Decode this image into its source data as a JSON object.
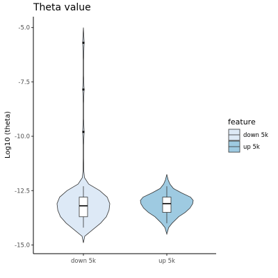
{
  "chart_data": {
    "type": "violin",
    "title": "Theta value",
    "xlabel": "",
    "ylabel": "Log10 (theta)",
    "ylim": [
      -15.4,
      -4.5
    ],
    "yticks": [
      -5.0,
      -7.5,
      -10.0,
      -12.5,
      -15.0
    ],
    "ytick_labels": [
      "-5.0",
      "-7.5",
      "-10.0",
      "-12.5",
      "-15.0"
    ],
    "categories": [
      "down 5k",
      "up 5k"
    ],
    "grid": false,
    "legend": {
      "title": "feature",
      "position": "right",
      "entries": [
        "down 5k",
        "up 5k"
      ]
    },
    "colors": {
      "down 5k": "#dde9f6",
      "up 5k": "#9ecae1",
      "outline": "#333333"
    },
    "series": [
      {
        "name": "down 5k",
        "box": {
          "q1": -13.7,
          "median": -13.2,
          "q3": -12.8,
          "whisker_low": -14.2,
          "whisker_high": -12.3
        },
        "outliers": [
          -5.7,
          -7.85,
          -9.8
        ],
        "density": [
          [
            -14.9,
            0.0
          ],
          [
            -14.6,
            0.05
          ],
          [
            -14.3,
            0.35
          ],
          [
            -14.0,
            0.65
          ],
          [
            -13.7,
            0.87
          ],
          [
            -13.4,
            0.97
          ],
          [
            -13.1,
            1.0
          ],
          [
            -12.8,
            0.9
          ],
          [
            -12.5,
            0.62
          ],
          [
            -12.2,
            0.2
          ],
          [
            -11.9,
            0.04
          ],
          [
            -11.6,
            0.015
          ],
          [
            -11.0,
            0.008
          ],
          [
            -10.4,
            0.008
          ],
          [
            -10.0,
            0.02
          ],
          [
            -9.8,
            0.03
          ],
          [
            -9.6,
            0.02
          ],
          [
            -9.2,
            0.008
          ],
          [
            -8.5,
            0.008
          ],
          [
            -8.0,
            0.02
          ],
          [
            -7.85,
            0.03
          ],
          [
            -7.7,
            0.02
          ],
          [
            -7.2,
            0.008
          ],
          [
            -6.5,
            0.008
          ],
          [
            -5.9,
            0.02
          ],
          [
            -5.7,
            0.03
          ],
          [
            -5.5,
            0.02
          ],
          [
            -5.0,
            0.0
          ]
        ]
      },
      {
        "name": "up 5k",
        "box": {
          "q1": -13.5,
          "median": -13.1,
          "q3": -12.8,
          "whisker_low": -14.0,
          "whisker_high": -12.3
        },
        "outliers": [],
        "density": [
          [
            -14.5,
            0.0
          ],
          [
            -14.2,
            0.07
          ],
          [
            -14.0,
            0.2
          ],
          [
            -13.7,
            0.45
          ],
          [
            -13.5,
            0.7
          ],
          [
            -13.3,
            0.88
          ],
          [
            -13.1,
            0.98
          ],
          [
            -12.95,
            1.0
          ],
          [
            -12.8,
            0.9
          ],
          [
            -12.6,
            0.55
          ],
          [
            -12.4,
            0.25
          ],
          [
            -12.2,
            0.12
          ],
          [
            -12.0,
            0.05
          ],
          [
            -11.75,
            0.0
          ]
        ]
      }
    ]
  }
}
